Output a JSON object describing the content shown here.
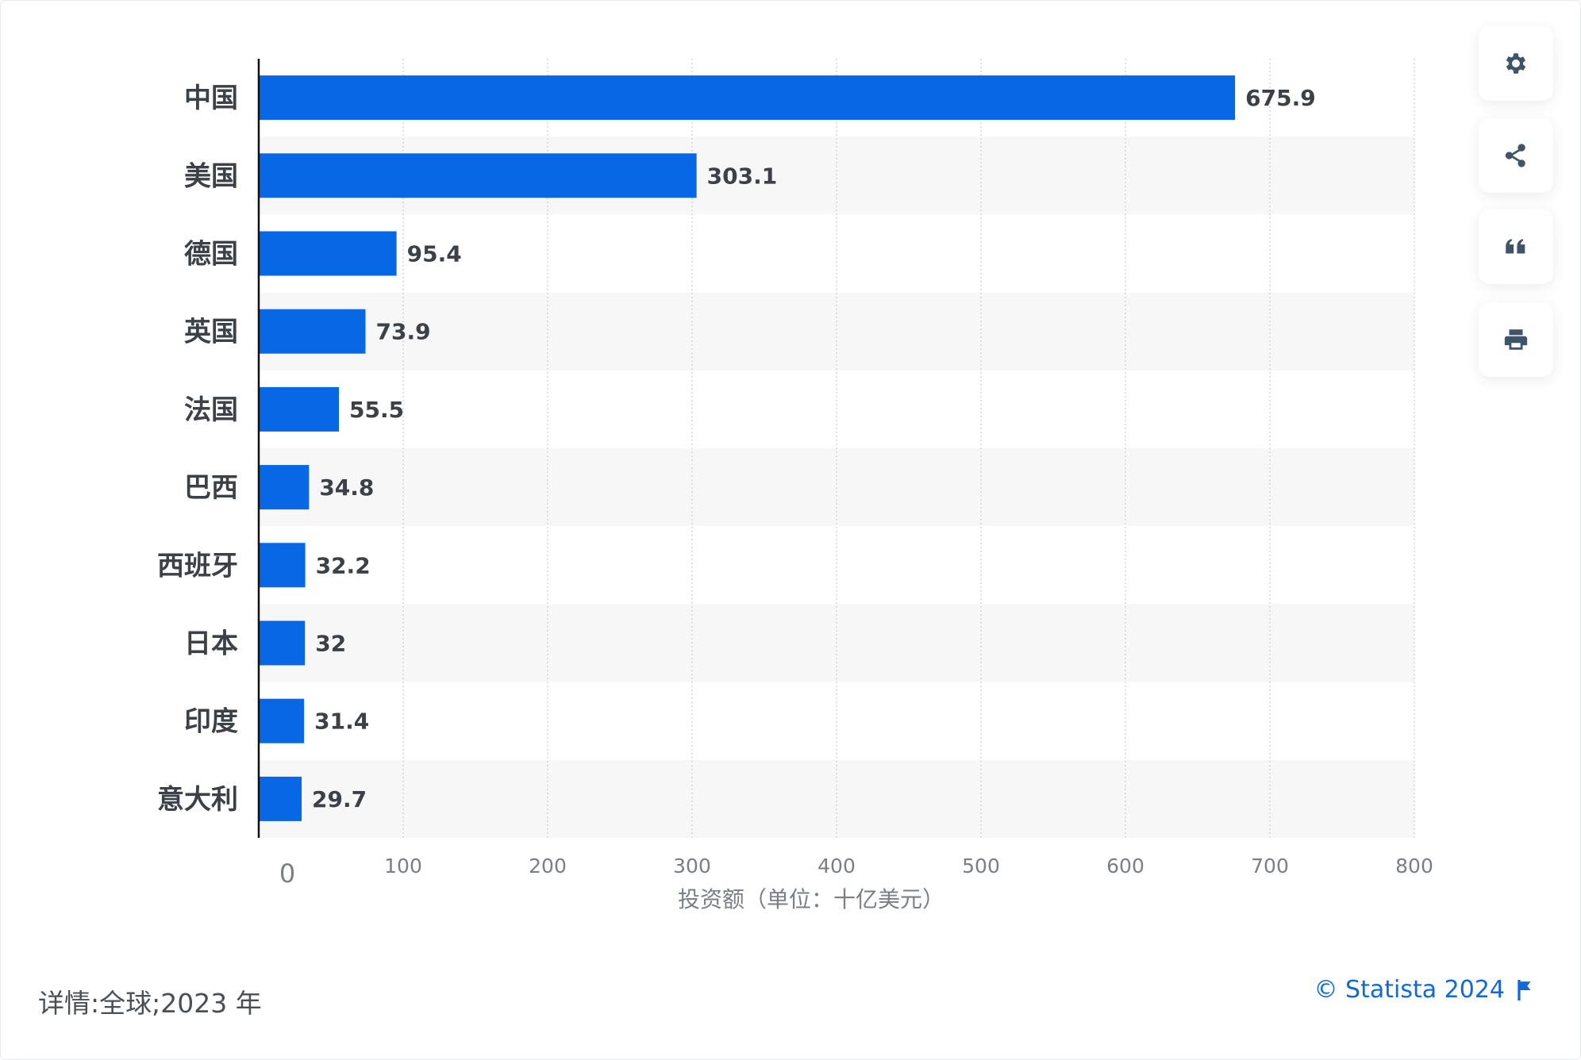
{
  "chart_data": {
    "type": "bar",
    "orientation": "horizontal",
    "categories": [
      "中国",
      "美国",
      "德国",
      "英国",
      "法国",
      "巴西",
      "西班牙",
      "日本",
      "印度",
      "意大利"
    ],
    "values": [
      675.9,
      303.1,
      95.4,
      73.9,
      55.5,
      34.8,
      32.2,
      32,
      31.4,
      29.7
    ],
    "value_labels": [
      "675.9",
      "303.1",
      "95.4",
      "73.9",
      "55.5",
      "34.8",
      "32.2",
      "32",
      "31.4",
      "29.7"
    ],
    "xlabel": "投资额（单位：十亿美元）",
    "ylabel": "",
    "xlim": [
      0,
      800
    ],
    "xticks": [
      "0",
      "100",
      "200",
      "300",
      "400",
      "500",
      "600",
      "700",
      "800"
    ],
    "grid": true,
    "bar_color": "#0767e4"
  },
  "footer": {
    "details": "详情:全球;2023 年",
    "copyright": "© Statista 2024"
  },
  "toolbar": {
    "icons": [
      "gear-icon",
      "share-icon",
      "quote-icon",
      "print-icon"
    ]
  }
}
